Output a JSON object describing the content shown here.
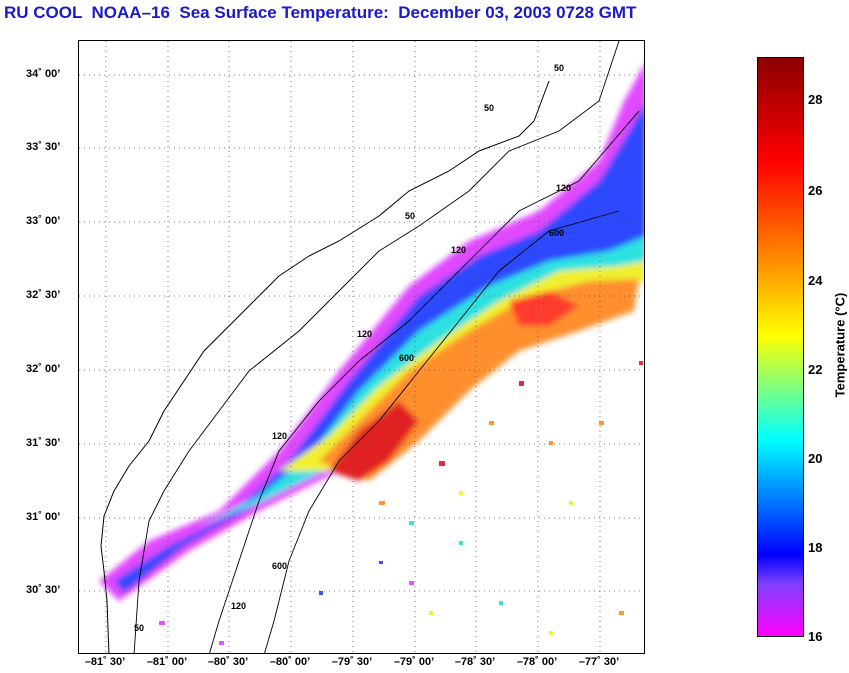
{
  "title": "RU COOL  NOAA–16  Sea Surface Temperature:  December 03, 2003 0728 GMT",
  "map": {
    "lat_labels": [
      "34˚ 00’",
      "33˚ 30’",
      "33˚ 00’",
      "32˚ 30’",
      "32˚ 00’",
      "31˚ 30’",
      "31˚ 00’",
      "30˚ 30’"
    ],
    "lon_labels": [
      "–81˚ 30’",
      "–81˚ 00’",
      "–80˚ 30’",
      "–80˚ 00’",
      "–79˚ 30’",
      "–79˚ 00’",
      "–78˚ 30’",
      "–78˚ 00’",
      "–77˚ 30’"
    ],
    "contour_labels": [
      "50",
      "50",
      "50",
      "120",
      "120",
      "120",
      "120",
      "600",
      "600",
      "600",
      "120",
      "50"
    ]
  },
  "colorbar": {
    "label": "Temperature (°C)",
    "tick_labels": [
      "28",
      "26",
      "24",
      "22",
      "20",
      "18",
      "16"
    ],
    "colors": {
      "warm": "#8b0000",
      "hot": "#ff0000",
      "orange": "#ff8c00",
      "yellow": "#ffff00",
      "cyan": "#00ffff",
      "blue": "#0000ff",
      "magenta": "#ff00ff"
    }
  }
}
